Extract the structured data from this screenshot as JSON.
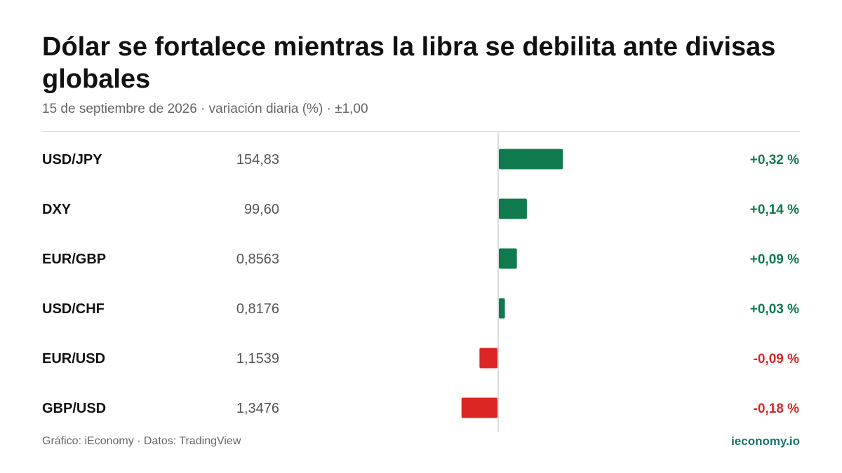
{
  "title": "Dólar se fortalece mientras la libra se debilita ante divisas globales",
  "subtitle": "15 de septiembre de 2026 · variación diaria (%) · ±1,00",
  "footer": {
    "source": "Gráfico: iEconomy · Datos: TradingView",
    "brand": "ieconomy.io"
  },
  "colors": {
    "positive": "#0f7a4d",
    "negative": "#dc2626",
    "brand": "#14756b"
  },
  "chart_data": {
    "type": "bar",
    "orientation": "horizontal",
    "categories": [
      "USD/JPY",
      "DXY",
      "EUR/GBP",
      "USD/CHF",
      "EUR/USD",
      "GBP/USD"
    ],
    "prices": [
      "154,83",
      "99,60",
      "0,8563",
      "0,8176",
      "1,1539",
      "1,3476"
    ],
    "values": [
      0.32,
      0.14,
      0.09,
      0.03,
      -0.09,
      -0.18
    ],
    "value_labels": [
      "+0,32 %",
      "+0,14 %",
      "+0,09 %",
      "+0,03 %",
      "-0,09 %",
      "-0,18 %"
    ],
    "xlim": [
      -1,
      1
    ],
    "title": "Dólar se fortalece mientras la libra se debilita ante divisas globales"
  }
}
